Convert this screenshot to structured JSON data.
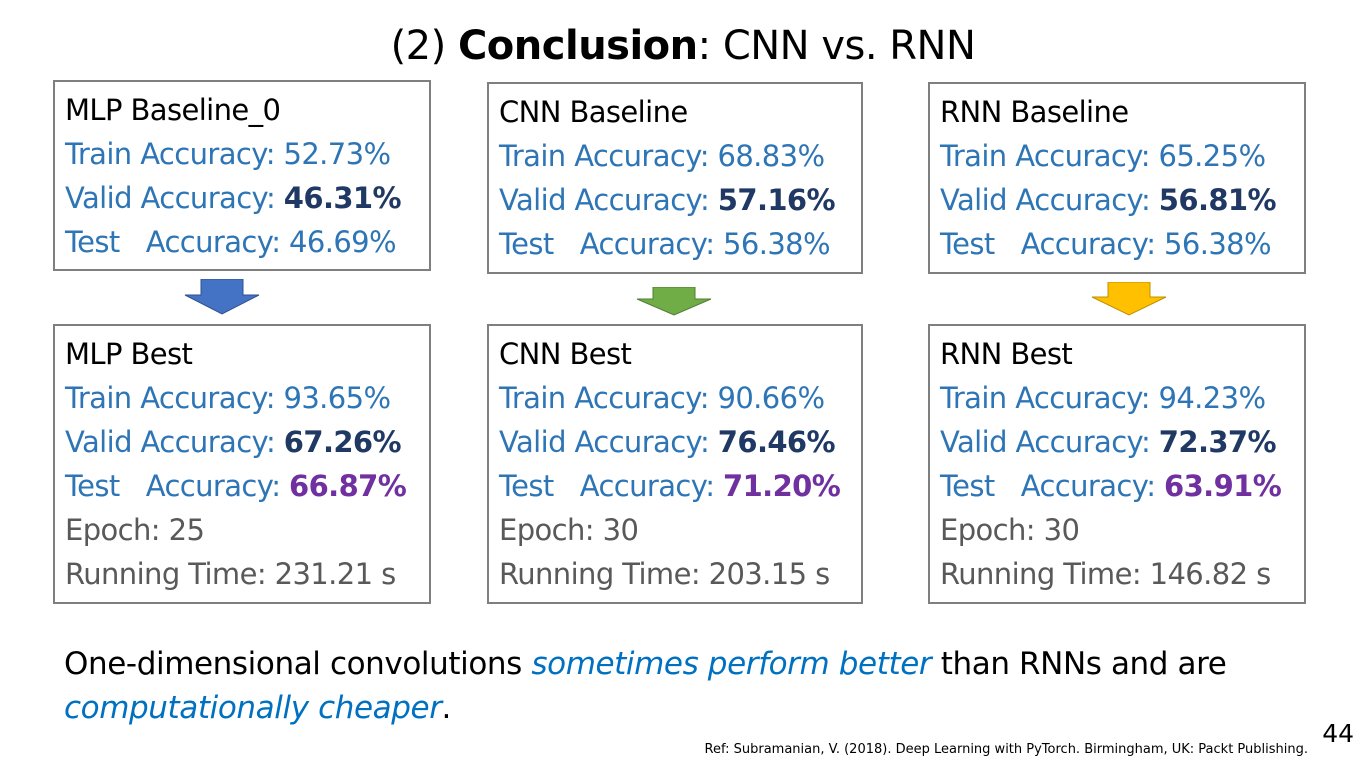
{
  "slide": {
    "title_prefix": "(2) ",
    "title_bold": "Conclusion",
    "title_suffix": ": CNN vs. RNN",
    "page_number": "44"
  },
  "baselines": [
    {
      "name": "MLP Baseline_0",
      "train_label": "Train Accuracy: ",
      "train": "52.73%",
      "valid_label": "Valid Accuracy: ",
      "valid": "46.31%",
      "test_label_a": "Test",
      "test_label_b": "Accuracy: ",
      "test": "46.69%"
    },
    {
      "name": "CNN Baseline",
      "train_label": "Train Accuracy: ",
      "train": "68.83%",
      "valid_label": "Valid Accuracy: ",
      "valid": "57.16%",
      "test_label_a": "Test",
      "test_label_b": "Accuracy: ",
      "test": "56.38%"
    },
    {
      "name": "RNN Baseline",
      "train_label": "Train Accuracy: ",
      "train": "65.25%",
      "valid_label": "Valid Accuracy: ",
      "valid": "56.81%",
      "test_label_a": "Test",
      "test_label_b": "Accuracy: ",
      "test": "56.38%"
    }
  ],
  "best": [
    {
      "name": "MLP Best",
      "train_label": "Train Accuracy: ",
      "train": "93.65%",
      "valid_label": "Valid Accuracy: ",
      "valid": "67.26%",
      "test_label_a": "Test",
      "test_label_b": "Accuracy: ",
      "test": "66.87%",
      "epoch": "Epoch: 25",
      "time": "Running Time: 231.21 s"
    },
    {
      "name": "CNN Best",
      "train_label": "Train Accuracy: ",
      "train": "90.66%",
      "valid_label": "Valid Accuracy: ",
      "valid": "76.46%",
      "test_label_a": "Test",
      "test_label_b": "Accuracy: ",
      "test": "71.20%",
      "epoch": "Epoch: 30",
      "time": "Running Time: 203.15 s"
    },
    {
      "name": "RNN Best",
      "train_label": "Train Accuracy: ",
      "train": "94.23%",
      "valid_label": "Valid Accuracy: ",
      "valid": "72.37%",
      "test_label_a": "Test",
      "test_label_b": "Accuracy: ",
      "test": "63.91%",
      "epoch": "Epoch: 30",
      "time": "Running Time: 146.82 s"
    }
  ],
  "arrow_colors": [
    "#4472c4",
    "#70ad47",
    "#ffc000"
  ],
  "conclusion": {
    "part1": "One-dimensional convolutions ",
    "em1": "sometimes perform better",
    "part2": " than RNNs and are ",
    "em2": "computationally cheaper",
    "part3": "."
  },
  "reference": "Ref: Subramanian, V. (2018). Deep Learning with PyTorch. Birmingham, UK: Packt Publishing."
}
